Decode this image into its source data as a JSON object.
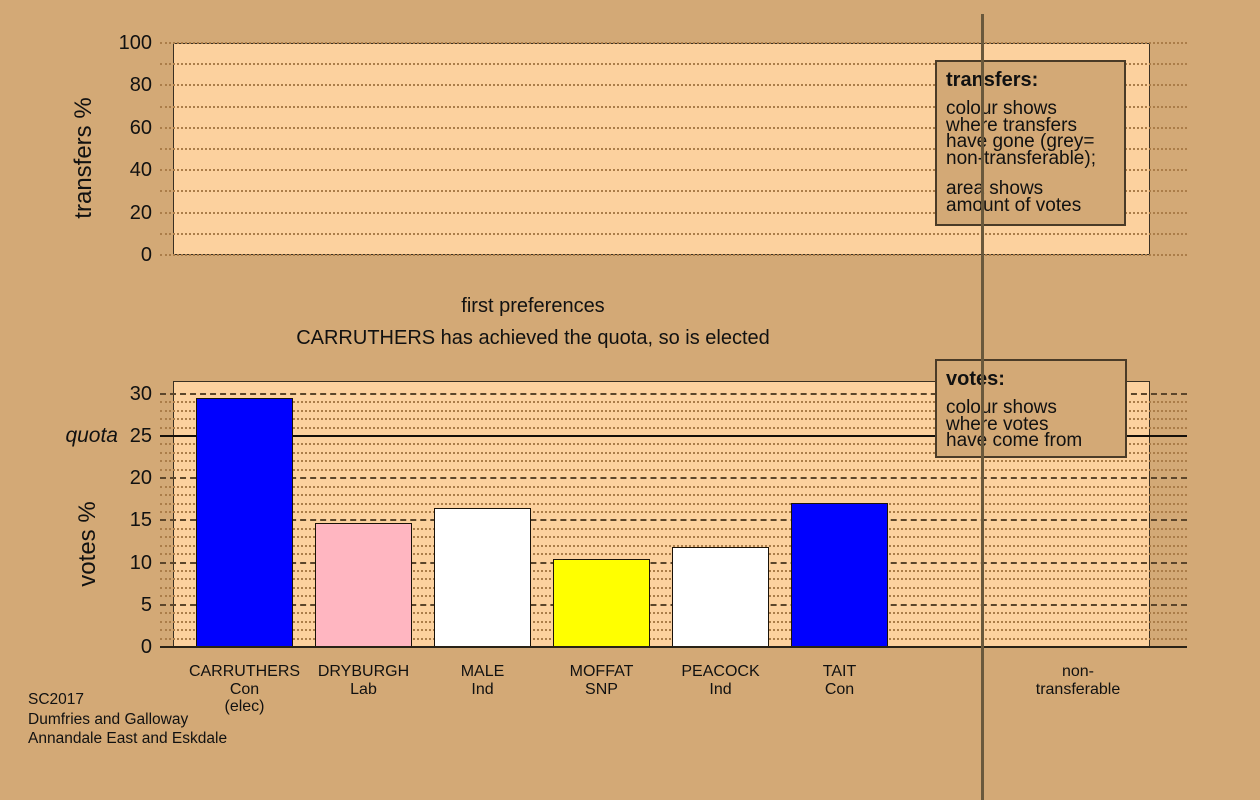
{
  "colors": {
    "background": "#d3a976",
    "plot_fill": "#fcd19e",
    "grid_minor": "#ab7d49",
    "grid_major": "#5c462b",
    "axis": "#292216",
    "quota_line": "#15100a",
    "bar_border": "#1a1208",
    "legend_border": "#4a3b27",
    "separator": "#6a593c",
    "text": "#111111",
    "bar_blue": "#0000ff",
    "bar_pink": "#ffb6c1",
    "bar_white": "#ffffff",
    "bar_yellow": "#ffff00"
  },
  "captions": {
    "stage": "first preferences",
    "status": "CARRUTHERS has achieved the quota, so is elected"
  },
  "legend_transfers": {
    "title": "transfers:",
    "body1": "colour shows\nwhere transfers\nhave gone (grey=\nnon-transferable);",
    "body2": "area shows\namount of votes"
  },
  "legend_votes": {
    "title": "votes:",
    "body": "colour shows\nwhere votes\nhave come from"
  },
  "source": {
    "election": "SC2017",
    "council": "Dumfries and Galloway",
    "ward": "Annandale East and Eskdale"
  },
  "chart_data": [
    {
      "type": "bar",
      "panel": "transfers",
      "ylabel": "transfers %",
      "ylim": [
        0,
        100
      ],
      "yticks": [
        0,
        20,
        40,
        60,
        80,
        100
      ],
      "grid_step": 10,
      "grid_style": "dotted",
      "categories": [],
      "values": []
    },
    {
      "type": "bar",
      "panel": "votes",
      "ylabel": "votes %",
      "ylim": [
        0,
        31.5
      ],
      "yticks": [
        0,
        5,
        10,
        15,
        20,
        25,
        30
      ],
      "minor_grid_step": 1,
      "major_grid_step": 5,
      "quota": {
        "value": 25,
        "label": "quota"
      },
      "categories": [
        "CARRUTHERS\nCon\n(elec)",
        "DRYBURGH\nLab",
        "MALE\nInd",
        "MOFFAT\nSNP",
        "PEACOCK\nInd",
        "TAIT\nCon"
      ],
      "values": [
        29.5,
        14.7,
        16.5,
        10.4,
        11.8,
        17.1
      ],
      "bar_colors": [
        "#0000ff",
        "#ffb6c1",
        "#ffffff",
        "#ffff00",
        "#ffffff",
        "#0000ff"
      ],
      "extra_category": "non-\ntransferable"
    }
  ]
}
